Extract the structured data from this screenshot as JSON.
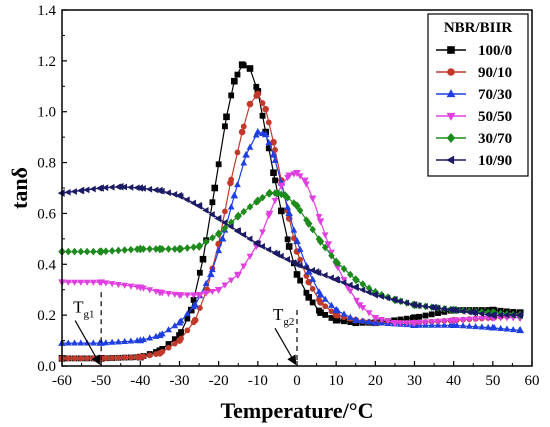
{
  "chart_data": {
    "type": "line",
    "xlabel": "Temperature/°C",
    "ylabel": "tanδ",
    "xlim": [
      -60,
      60
    ],
    "ylim": [
      0.0,
      1.4
    ],
    "xticks": [
      -60,
      -50,
      -40,
      -30,
      -20,
      -10,
      0,
      10,
      20,
      30,
      40,
      50,
      60
    ],
    "yticks": [
      0.0,
      0.2,
      0.4,
      0.6,
      0.8,
      1.0,
      1.2,
      1.4
    ],
    "legend": {
      "title": "NBR/BIIR",
      "position": "top-right"
    },
    "series": [
      {
        "name": "100/0",
        "color": "#000000",
        "marker": "square",
        "x": [
          -60,
          -50,
          -40,
          -35,
          -30,
          -27,
          -24,
          -21,
          -18,
          -16,
          -14,
          -12,
          -10,
          -8,
          -6,
          -4,
          -2,
          0,
          3,
          6,
          10,
          15,
          20,
          30,
          40,
          50,
          57
        ],
        "y": [
          0.03,
          0.03,
          0.035,
          0.06,
          0.12,
          0.22,
          0.42,
          0.7,
          0.98,
          1.12,
          1.185,
          1.17,
          1.08,
          0.92,
          0.76,
          0.61,
          0.47,
          0.36,
          0.27,
          0.21,
          0.18,
          0.17,
          0.17,
          0.19,
          0.22,
          0.22,
          0.21
        ]
      },
      {
        "name": "90/10",
        "color": "#c0392b",
        "marker": "circle",
        "x": [
          -60,
          -50,
          -40,
          -35,
          -30,
          -26,
          -23,
          -20,
          -17,
          -14,
          -12,
          -10,
          -8,
          -6,
          -4,
          -2,
          0,
          3,
          6,
          10,
          15,
          20,
          30,
          40,
          50,
          57
        ],
        "y": [
          0.03,
          0.03,
          0.035,
          0.05,
          0.1,
          0.18,
          0.3,
          0.48,
          0.72,
          0.92,
          1.03,
          1.07,
          1.01,
          0.88,
          0.73,
          0.58,
          0.45,
          0.33,
          0.25,
          0.2,
          0.18,
          0.17,
          0.17,
          0.18,
          0.19,
          0.2
        ]
      },
      {
        "name": "70/30",
        "color": "#1f3fe0",
        "marker": "triangle-up",
        "x": [
          -60,
          -50,
          -40,
          -35,
          -30,
          -26,
          -22,
          -19,
          -16,
          -13,
          -10,
          -8,
          -6,
          -4,
          -2,
          0,
          3,
          6,
          10,
          15,
          20,
          30,
          40,
          50,
          57
        ],
        "y": [
          0.09,
          0.09,
          0.1,
          0.12,
          0.17,
          0.24,
          0.36,
          0.5,
          0.67,
          0.83,
          0.92,
          0.91,
          0.83,
          0.72,
          0.6,
          0.49,
          0.37,
          0.28,
          0.22,
          0.18,
          0.17,
          0.16,
          0.16,
          0.15,
          0.14
        ]
      },
      {
        "name": "50/50",
        "color": "#e040e0",
        "marker": "triangle-down",
        "x": [
          -60,
          -50,
          -40,
          -35,
          -30,
          -25,
          -20,
          -15,
          -10,
          -7,
          -4,
          -2,
          0,
          2,
          4,
          6,
          8,
          10,
          13,
          16,
          20,
          25,
          30,
          40,
          50,
          57
        ],
        "y": [
          0.33,
          0.33,
          0.31,
          0.29,
          0.28,
          0.28,
          0.3,
          0.36,
          0.48,
          0.6,
          0.71,
          0.75,
          0.76,
          0.73,
          0.66,
          0.57,
          0.48,
          0.4,
          0.31,
          0.24,
          0.19,
          0.17,
          0.17,
          0.18,
          0.19,
          0.19
        ]
      },
      {
        "name": "30/70",
        "color": "#1e8a1e",
        "marker": "diamond",
        "x": [
          -60,
          -50,
          -40,
          -35,
          -30,
          -25,
          -20,
          -15,
          -10,
          -7,
          -5,
          -3,
          0,
          3,
          6,
          10,
          15,
          20,
          25,
          30,
          40,
          50,
          57
        ],
        "y": [
          0.45,
          0.45,
          0.46,
          0.46,
          0.46,
          0.47,
          0.52,
          0.59,
          0.65,
          0.68,
          0.68,
          0.67,
          0.63,
          0.56,
          0.49,
          0.41,
          0.34,
          0.29,
          0.26,
          0.24,
          0.22,
          0.21,
          0.2
        ]
      },
      {
        "name": "10/90",
        "color": "#1a1a66",
        "marker": "triangle-left",
        "x": [
          -60,
          -55,
          -50,
          -45,
          -40,
          -35,
          -30,
          -25,
          -20,
          -15,
          -10,
          -5,
          0,
          5,
          10,
          15,
          20,
          25,
          30,
          35,
          40,
          45,
          50,
          57
        ],
        "y": [
          0.68,
          0.69,
          0.7,
          0.705,
          0.7,
          0.69,
          0.67,
          0.63,
          0.58,
          0.53,
          0.48,
          0.44,
          0.4,
          0.37,
          0.34,
          0.31,
          0.28,
          0.26,
          0.24,
          0.23,
          0.22,
          0.21,
          0.2,
          0.2
        ]
      }
    ],
    "annotations": [
      {
        "main": "T",
        "sub": "g1",
        "x": -50
      },
      {
        "main": "T",
        "sub": "g2",
        "x": 0
      }
    ]
  }
}
